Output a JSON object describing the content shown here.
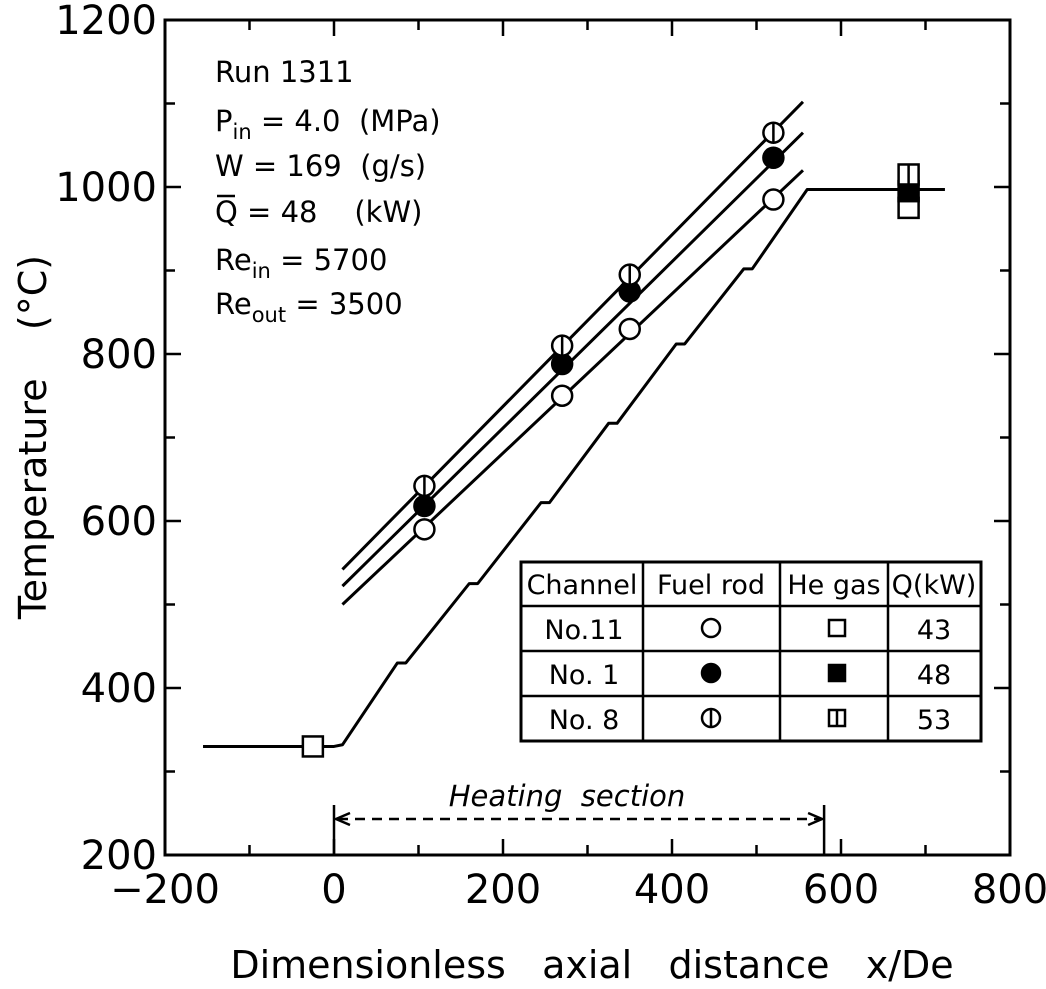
{
  "chart_data": {
    "type": "line",
    "xlabel": "Dimensionless   axial   distance   x/De",
    "ylabel": "Temperature    (°C)",
    "xlim": [
      -200,
      800
    ],
    "ylim": [
      200,
      1200
    ],
    "x_ticks": [
      -200,
      0,
      200,
      400,
      600,
      800
    ],
    "y_ticks": [
      200,
      400,
      600,
      800,
      1000,
      1200
    ],
    "x_minor_step": 100,
    "y_minor_step": 100,
    "annotations": {
      "run": "Run 1311",
      "pin_main": "P",
      "pin_sub": "in",
      "pin_rest": " = 4.0  (MPa)",
      "w": "W = 169  (g/s)",
      "q_main": "Q",
      "q_rest": " = 48    (kW)",
      "rein_main": "Re",
      "rein_sub": "in",
      "rein_rest": " = 5700",
      "reout_main": "Re",
      "reout_sub": "out",
      "reout_rest": " = 3500",
      "heating_section": "Heating  section"
    },
    "heating_section_range": [
      0,
      580
    ],
    "gas_profile": {
      "x": [
        -155,
        0,
        10,
        75,
        85,
        160,
        170,
        245,
        255,
        325,
        335,
        405,
        415,
        485,
        495,
        560,
        723
      ],
      "y": [
        330,
        330,
        332,
        430,
        430,
        525,
        525,
        622,
        622,
        717,
        717,
        812,
        812,
        902,
        902,
        997,
        997
      ]
    },
    "fuel_lines": [
      {
        "name": "No. 8",
        "x": [
          10,
          555
        ],
        "y": [
          542,
          1102
        ]
      },
      {
        "name": "No. 1",
        "x": [
          10,
          555
        ],
        "y": [
          522,
          1065
        ]
      },
      {
        "name": "No. 11",
        "x": [
          10,
          555
        ],
        "y": [
          500,
          1020
        ]
      }
    ],
    "series": [
      {
        "name": "No.11 Fuel rod",
        "marker": "open-circle",
        "x": [
          107,
          270,
          350,
          520
        ],
        "y": [
          590,
          750,
          830,
          985
        ]
      },
      {
        "name": "No.1 Fuel rod",
        "marker": "filled-circle",
        "x": [
          107,
          270,
          350,
          520
        ],
        "y": [
          618,
          788,
          875,
          1035
        ]
      },
      {
        "name": "No.8 Fuel rod",
        "marker": "half-circle",
        "x": [
          107,
          270,
          350,
          520
        ],
        "y": [
          642,
          810,
          895,
          1065
        ]
      },
      {
        "name": "He gas",
        "marker": "open-square",
        "x": [
          -25,
          680
        ],
        "y": [
          330,
          975
        ]
      },
      {
        "name": "He gas",
        "marker": "filled-square",
        "x": [
          680
        ],
        "y": [
          995
        ]
      },
      {
        "name": "He gas",
        "marker": "half-square",
        "x": [
          680
        ],
        "y": [
          1015
        ]
      }
    ],
    "legend_table": {
      "headers": [
        "Channel",
        "Fuel rod",
        "He gas",
        "Q(kW)"
      ],
      "rows": [
        {
          "channel": "No.11",
          "fuel": "open-circle",
          "gas": "open-square",
          "q": "43"
        },
        {
          "channel": "No. 1",
          "fuel": "filled-circle",
          "gas": "filled-square",
          "q": "48"
        },
        {
          "channel": "No. 8",
          "fuel": "half-circle",
          "gas": "half-square",
          "q": "53"
        }
      ]
    }
  }
}
